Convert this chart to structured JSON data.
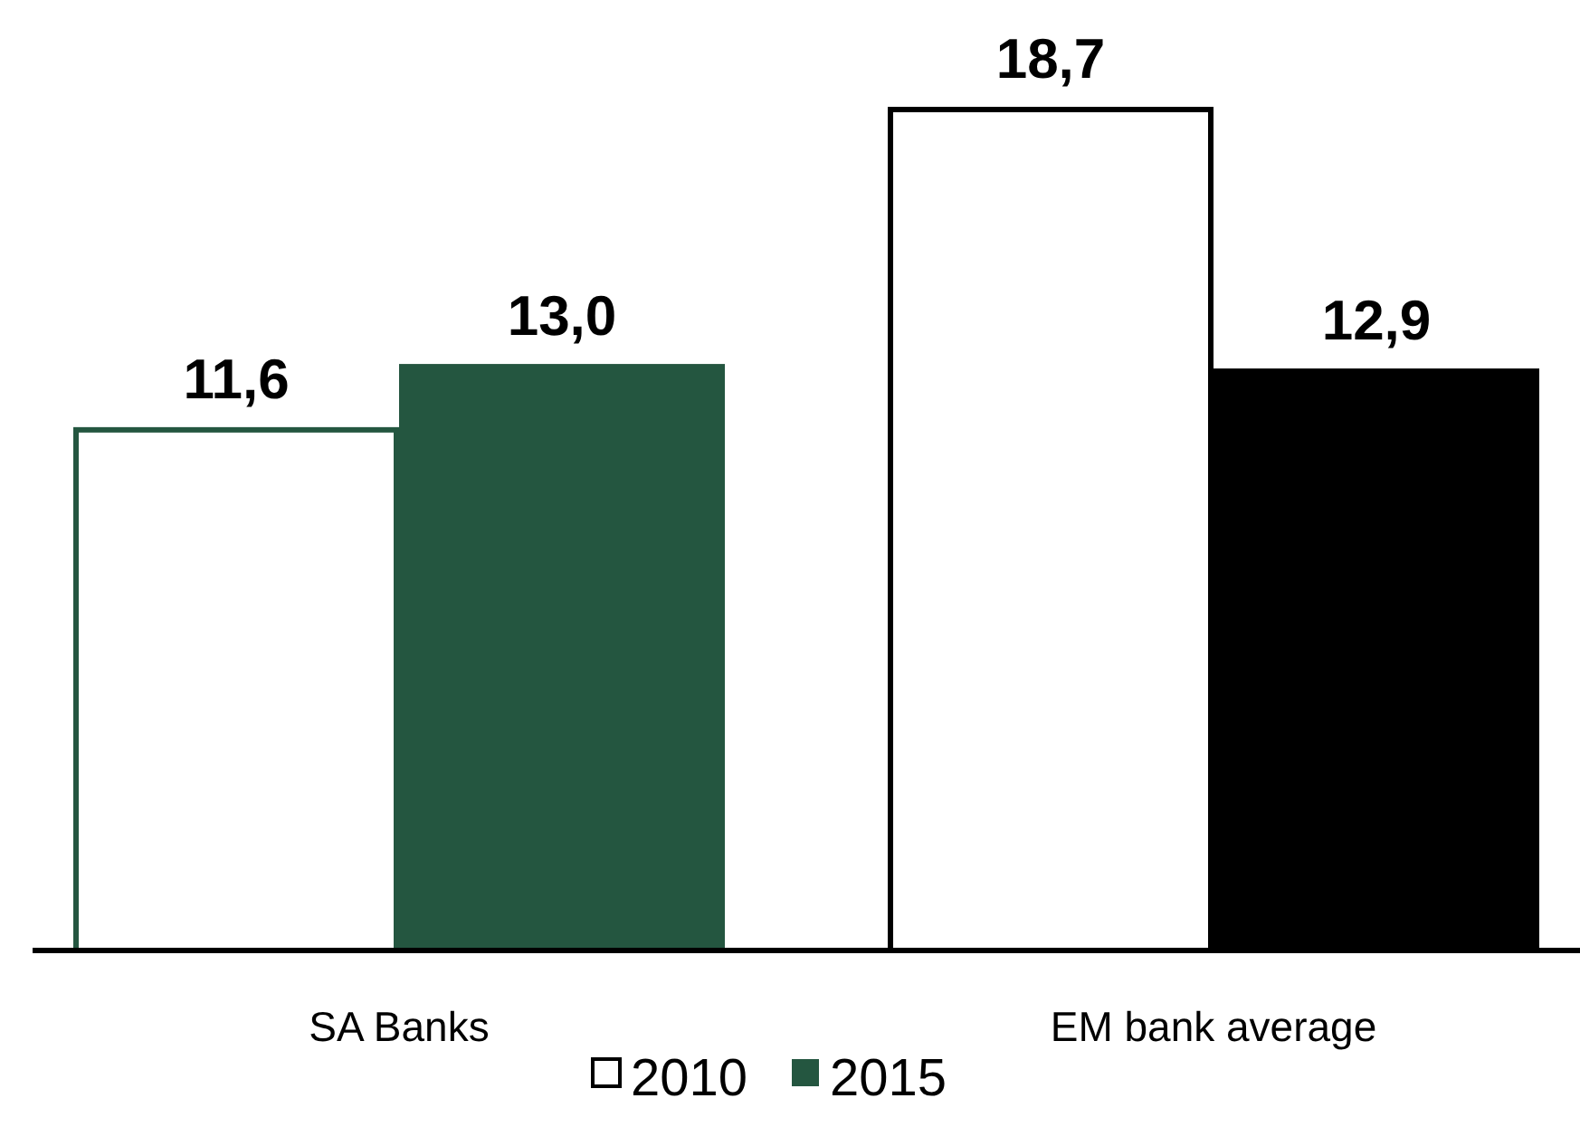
{
  "chart_data": {
    "type": "bar",
    "categories": [
      "SA Banks",
      "EM bank average"
    ],
    "series": [
      {
        "name": "2010",
        "color": "#ffffff",
        "colors": [
          "#ffffff",
          "#ffffff"
        ],
        "values": [
          11.6,
          18.7
        ],
        "value_labels": [
          "11,6",
          "18,7"
        ]
      },
      {
        "name": "2015",
        "color": "#245640",
        "colors": [
          "#245640",
          "#000000"
        ],
        "values": [
          13.0,
          12.9
        ],
        "value_labels": [
          "13,0",
          "12,9"
        ]
      }
    ],
    "legend": "bottom",
    "grid": false,
    "tick_labels": "x"
  }
}
